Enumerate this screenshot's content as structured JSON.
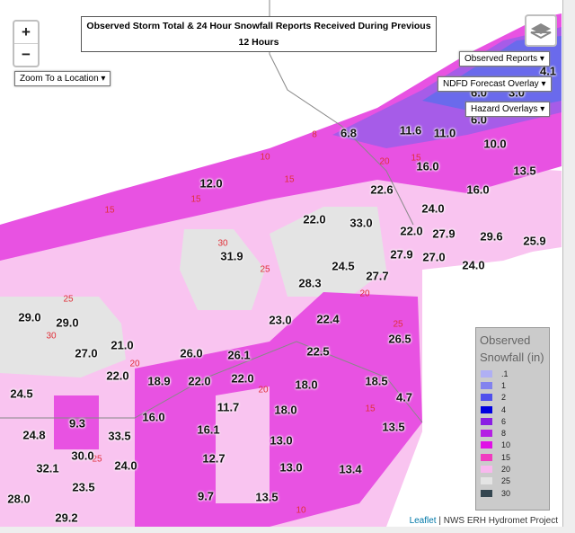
{
  "title": "Observed Storm Total & 24 Hour Snowfall Reports Received During Previous 12 Hours",
  "zoom_in": "+",
  "zoom_out": "−",
  "zoom_menu": "Zoom To a Location",
  "menus": [
    "Observed Reports",
    "NDFD Forecast Overlay",
    "Hazard Overlays"
  ],
  "reports": [
    "6.8",
    "11.6",
    "11.0",
    "10.0",
    "6.0",
    "6.0",
    "3.0",
    "4.1",
    "16.0",
    "13.5",
    "12.0",
    "22.6",
    "16.0",
    "24.0",
    "33.0",
    "22.0",
    "22.0",
    "27.9",
    "29.6",
    "25.9",
    "31.9",
    "27.9",
    "27.0",
    "24.0",
    "24.5",
    "28.3",
    "27.7",
    "29.0",
    "29.0",
    "23.0",
    "22.4",
    "26.5",
    "27.0",
    "21.0",
    "26.0",
    "26.1",
    "22.5",
    "22.0",
    "18.9",
    "22.0",
    "22.0",
    "18.0",
    "18.5",
    "24.5",
    "4.7",
    "11.7",
    "18.0",
    "16.0",
    "9.3",
    "13.5",
    "16.1",
    "24.8",
    "33.5",
    "13.0",
    "30.0",
    "12.7",
    "32.1",
    "24.0",
    "13.0",
    "13.4",
    "23.5",
    "28.0",
    "9.7",
    "13.5",
    "29.2"
  ],
  "contour_labels": [
    "8",
    "10",
    "15",
    "20",
    "15",
    "15",
    "15",
    "30",
    "25",
    "20",
    "25",
    "30",
    "25",
    "20",
    "20",
    "15",
    "25",
    "10"
  ],
  "legend": {
    "title": "Observed Snowfall (in)",
    "items": [
      {
        "label": ".1",
        "color": "#b0b0f4"
      },
      {
        "label": "1",
        "color": "#8282ee"
      },
      {
        "label": "2",
        "color": "#5050ec"
      },
      {
        "label": "4",
        "color": "#0000e0"
      },
      {
        "label": "6",
        "color": "#8a1ee4"
      },
      {
        "label": "8",
        "color": "#b420e4"
      },
      {
        "label": "10",
        "color": "#e010e6"
      },
      {
        "label": "15",
        "color": "#f03cc0"
      },
      {
        "label": "20",
        "color": "#f8b8ee"
      },
      {
        "label": "25",
        "color": "#e4e4e4"
      },
      {
        "label": "30",
        "color": "#344650"
      }
    ]
  },
  "attribution": {
    "link": "Leaflet",
    "text": "| NWS ERH Hydromet Project"
  }
}
